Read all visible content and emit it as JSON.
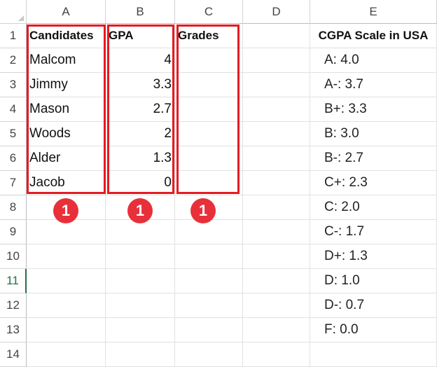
{
  "columns": [
    "A",
    "B",
    "C",
    "D",
    "E"
  ],
  "rows": [
    "1",
    "2",
    "3",
    "4",
    "5",
    "6",
    "7",
    "8",
    "9",
    "10",
    "11",
    "12",
    "13",
    "14"
  ],
  "selected_row": "11",
  "headers": {
    "candidates": "Candidates",
    "gpa": "GPA",
    "grades": "Grades"
  },
  "candidates": [
    {
      "name": "Malcom",
      "gpa": "4"
    },
    {
      "name": "Jimmy",
      "gpa": "3.3"
    },
    {
      "name": "Mason",
      "gpa": "2.7"
    },
    {
      "name": "Woods",
      "gpa": "2"
    },
    {
      "name": "Alder",
      "gpa": "1.3"
    },
    {
      "name": "Jacob",
      "gpa": "0"
    }
  ],
  "scale": {
    "title": "CGPA Scale in USA",
    "items": [
      "A: 4.0",
      "A-: 3.7",
      "B+: 3.3",
      "B: 3.0",
      "B-: 2.7",
      "C+: 2.3",
      "C: 2.0",
      "C-: 1.7",
      "D+: 1.3",
      "D: 1.0",
      "D-: 0.7",
      "F: 0.0"
    ]
  },
  "badges": [
    "1",
    "1",
    "1"
  ],
  "colors": {
    "highlight": "#e31b23",
    "badge": "#e8303a",
    "selected_row": "#1f7244"
  }
}
